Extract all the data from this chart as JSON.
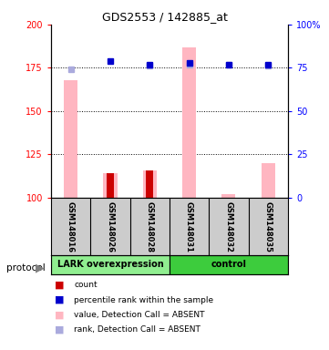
{
  "title": "GDS2553 / 142885_at",
  "samples": [
    "GSM148016",
    "GSM148026",
    "GSM148028",
    "GSM148031",
    "GSM148032",
    "GSM148035"
  ],
  "group_labels": [
    "LARK overexpression",
    "control"
  ],
  "group_boundaries": [
    0,
    3,
    6
  ],
  "group_color_lark": "#90EE90",
  "group_color_control": "#3DCC3D",
  "left_ylim": [
    100,
    200
  ],
  "right_ylim": [
    0,
    100
  ],
  "left_yticks": [
    100,
    125,
    150,
    175,
    200
  ],
  "right_yticks": [
    0,
    25,
    50,
    75,
    100
  ],
  "left_yticklabels": [
    "100",
    "125",
    "150",
    "175",
    "200"
  ],
  "right_yticklabels": [
    "0",
    "25",
    "50",
    "75",
    "100%"
  ],
  "pink_bar_values": [
    168,
    114,
    116,
    187,
    102,
    120
  ],
  "red_bar_values": [
    null,
    114,
    116,
    null,
    null,
    null
  ],
  "blue_dot_values": [
    null,
    79,
    77,
    78,
    77,
    77
  ],
  "lightblue_dot_values": [
    74,
    null,
    76,
    77,
    77,
    76
  ],
  "pink_color": "#FFB6C1",
  "red_color": "#CC0000",
  "blue_color": "#0000CC",
  "lightblue_color": "#AAAADD",
  "sample_box_color": "#CCCCCC",
  "bg_color": "#FFFFFF",
  "legend_items": [
    {
      "color": "#CC0000",
      "label": "count"
    },
    {
      "color": "#0000CC",
      "label": "percentile rank within the sample"
    },
    {
      "color": "#FFB6C1",
      "label": "value, Detection Call = ABSENT"
    },
    {
      "color": "#AAAADD",
      "label": "rank, Detection Call = ABSENT"
    }
  ]
}
